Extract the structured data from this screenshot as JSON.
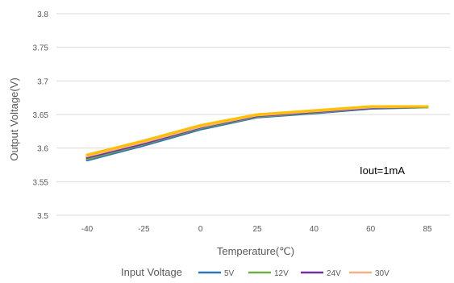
{
  "chart_data": {
    "type": "line",
    "xlabel": "Temperature(℃)",
    "ylabel": "Output Voltage(V)",
    "x": [
      -40,
      -25,
      0,
      25,
      40,
      60,
      85
    ],
    "ylim": [
      3.5,
      3.8
    ],
    "yticks": [
      3.5,
      3.55,
      3.6,
      3.65,
      3.7,
      3.75,
      3.8
    ],
    "grid": true,
    "annotation": "Iout=1mA",
    "legend_title": "Input Voltage",
    "legend_position": "bottom",
    "series": [
      {
        "name": "5V",
        "color": "#2e75b6",
        "values": [
          3.582,
          3.604,
          3.628,
          3.646,
          3.652,
          3.659,
          3.661
        ]
      },
      {
        "name": "12V",
        "color": "#70ad47",
        "values": [
          3.584,
          3.606,
          3.63,
          3.647,
          3.653,
          3.66,
          3.661
        ]
      },
      {
        "name": "24V",
        "color": "#7030a0",
        "values": [
          3.586,
          3.607,
          3.631,
          3.648,
          3.654,
          3.66,
          3.662
        ]
      },
      {
        "name": "30V",
        "color": "#f4b183",
        "values": [
          3.588,
          3.609,
          3.632,
          3.649,
          3.655,
          3.661,
          3.662
        ]
      },
      {
        "name": "",
        "color": "#ffc000",
        "values": [
          3.59,
          3.611,
          3.634,
          3.65,
          3.656,
          3.662,
          3.662
        ]
      }
    ]
  }
}
